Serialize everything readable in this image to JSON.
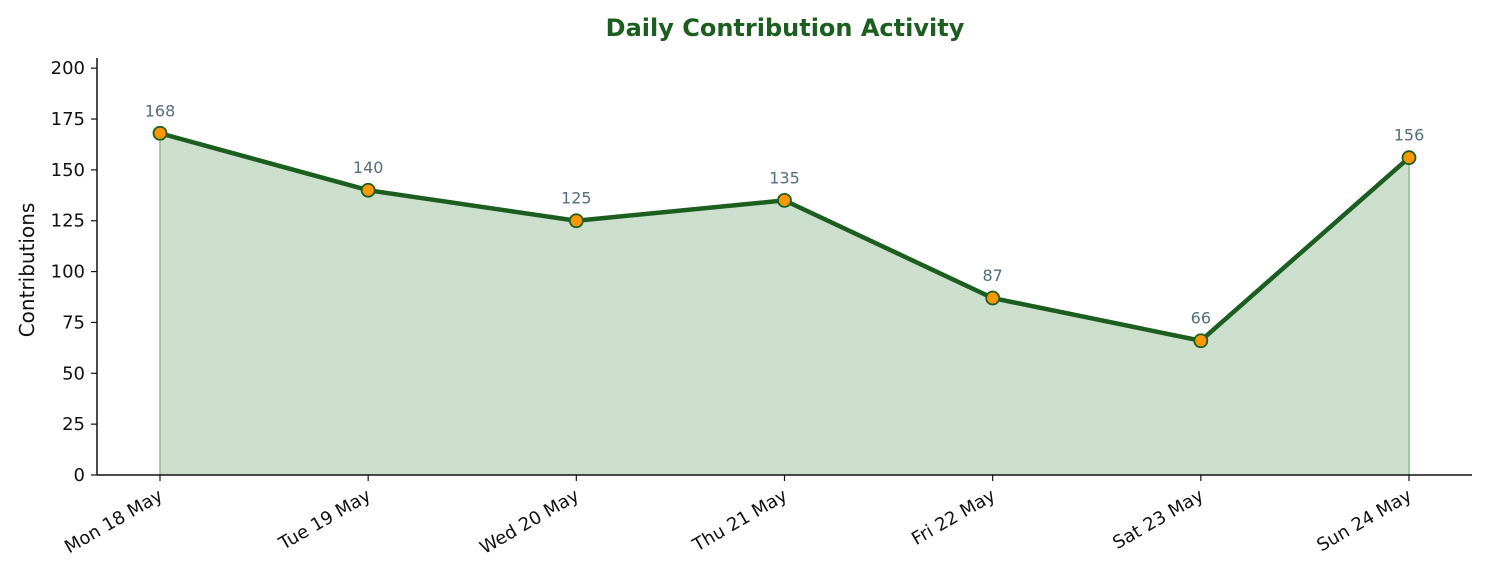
{
  "chart_data": {
    "type": "area",
    "title": "Daily Contribution Activity",
    "xlabel": "",
    "ylabel": "Contributions",
    "categories": [
      "Mon 18 May",
      "Tue 19 May",
      "Wed 20 May",
      "Thu 21 May",
      "Fri 22 May",
      "Sat 23 May",
      "Sun 24 May"
    ],
    "values": [
      168,
      140,
      125,
      135,
      87,
      66,
      156
    ],
    "ylim": [
      0,
      200
    ],
    "yticks": [
      0,
      25,
      50,
      75,
      100,
      125,
      150,
      175,
      200
    ],
    "grid": false,
    "legend": "none",
    "data_labels": true,
    "colors": {
      "title": "#1b5e20",
      "line": "#1b5e20",
      "fill": "#a5c8a7",
      "marker_fill": "#ff9800",
      "marker_edge": "#1b5e20",
      "data_label": "#546e7a",
      "axis": "#111111"
    }
  }
}
